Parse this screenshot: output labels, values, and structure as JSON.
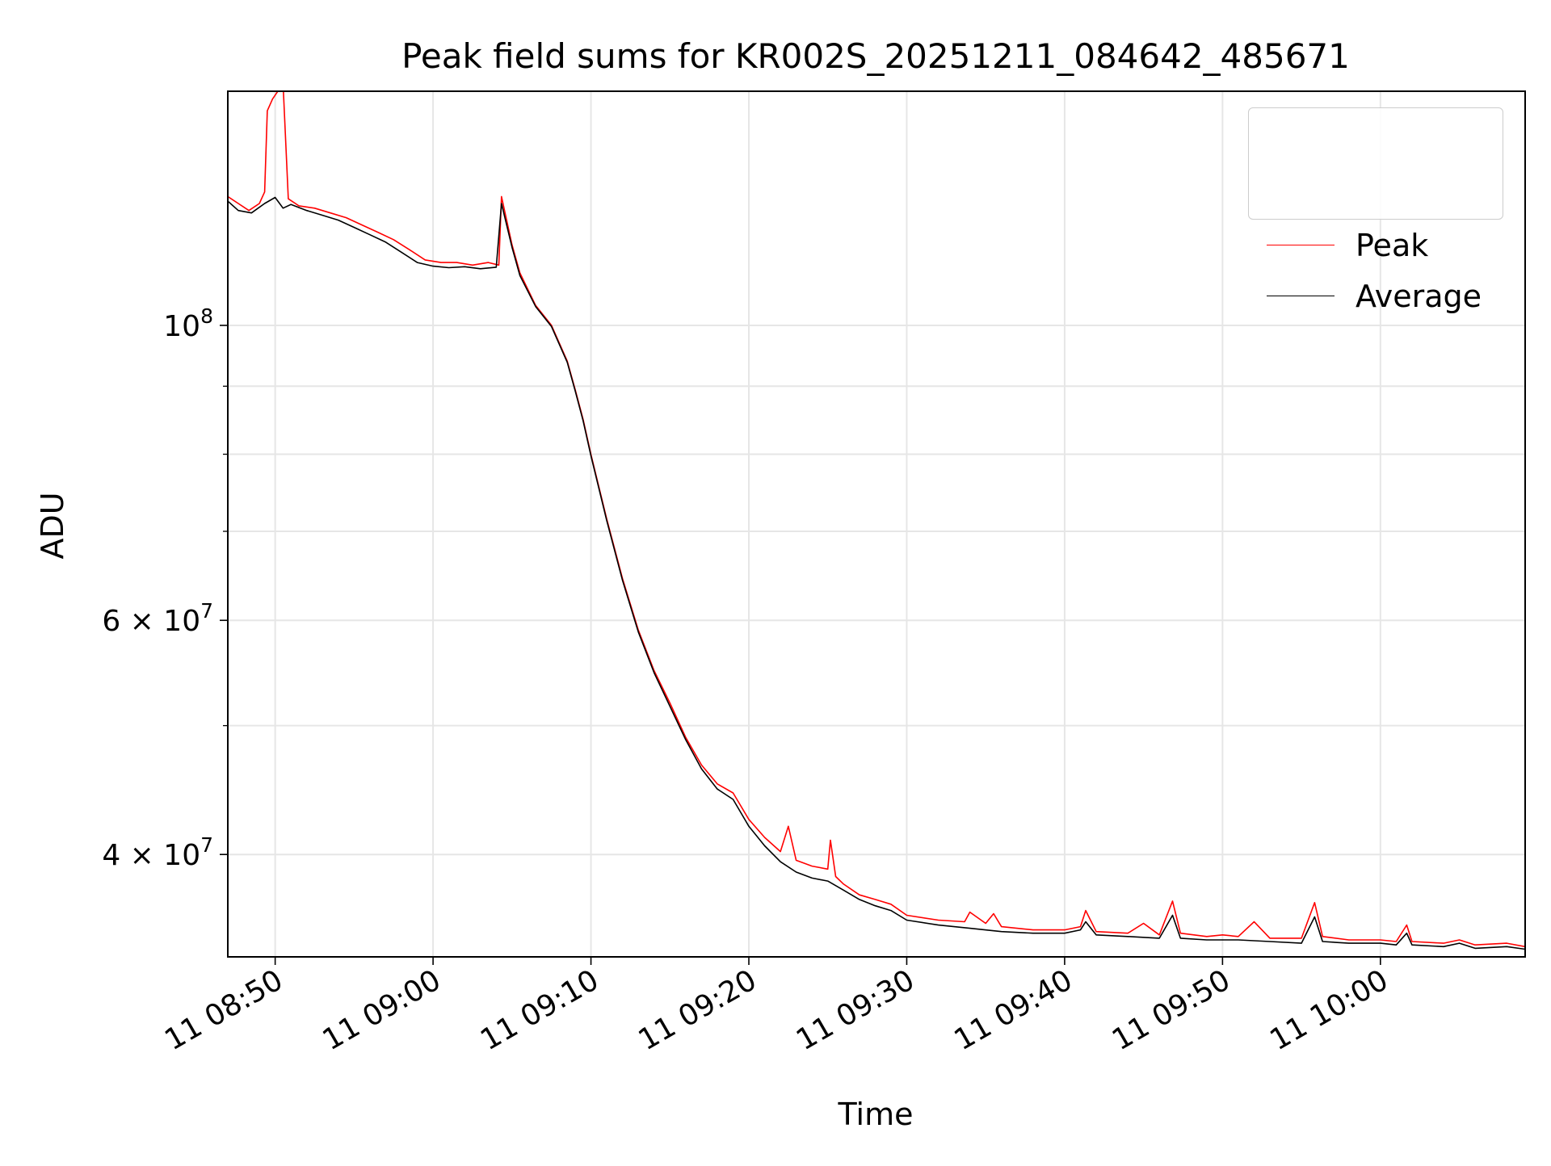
{
  "chart_data": {
    "type": "line",
    "title": "Peak field sums for KR002S_20251211_084642_485671",
    "xlabel": "Time",
    "ylabel": "ADU",
    "yscale": "log",
    "grid": true,
    "legend_position": "top-right",
    "x_tick_labels": [
      "11 08:50",
      "11 09:00",
      "11 09:10",
      "11 09:20",
      "11 09:30",
      "11 09:40",
      "11 09:50",
      "11 10:00"
    ],
    "x_tick_times": [
      "08:50",
      "09:00",
      "09:10",
      "09:20",
      "09:30",
      "09:40",
      "09:50",
      "10:00"
    ],
    "y_tick_labels": [
      {
        "value": 100000000,
        "mantissa": "",
        "exponent": "8"
      },
      {
        "value": 60000000,
        "mantissa": "6",
        "exponent": "7"
      },
      {
        "value": 40000000,
        "mantissa": "4",
        "exponent": "7"
      }
    ],
    "y_minor_ticks": [
      30000000,
      50000000,
      70000000,
      80000000,
      90000000
    ],
    "xlim": [
      "08:47:00",
      "10:09:10"
    ],
    "ylim": [
      33500000,
      150000000
    ],
    "series": [
      {
        "name": "Peak",
        "color": "#ff0000",
        "points": [
          [
            "08:47:00",
            125000000
          ],
          [
            "08:47:40",
            123500000
          ],
          [
            "08:48:20",
            122000000
          ],
          [
            "08:49:00",
            123500000
          ],
          [
            "08:49:20",
            126000000
          ],
          [
            "08:49:30",
            145000000
          ],
          [
            "08:49:50",
            148000000
          ],
          [
            "08:50:30",
            152000000
          ],
          [
            "08:50:50",
            124500000
          ],
          [
            "08:51:30",
            123000000
          ],
          [
            "08:52:30",
            122500000
          ],
          [
            "08:53:30",
            121500000
          ],
          [
            "08:54:30",
            120500000
          ],
          [
            "08:55:30",
            119000000
          ],
          [
            "08:56:30",
            117500000
          ],
          [
            "08:57:30",
            116000000
          ],
          [
            "08:58:30",
            114000000
          ],
          [
            "08:59:30",
            112000000
          ],
          [
            "09:00:30",
            111500000
          ],
          [
            "09:01:30",
            111500000
          ],
          [
            "09:02:30",
            111000000
          ],
          [
            "09:03:30",
            111500000
          ],
          [
            "09:04:10",
            111000000
          ],
          [
            "09:04:20",
            125000000
          ],
          [
            "09:05:00",
            115000000
          ],
          [
            "09:05:30",
            109500000
          ],
          [
            "09:06:30",
            103500000
          ],
          [
            "09:07:30",
            100000000
          ],
          [
            "09:08:30",
            94000000
          ],
          [
            "09:09:00",
            89500000
          ],
          [
            "09:09:30",
            85000000
          ],
          [
            "09:10:00",
            80000000
          ],
          [
            "09:11:00",
            71500000
          ],
          [
            "09:12:00",
            64500000
          ],
          [
            "09:13:00",
            59000000
          ],
          [
            "09:14:00",
            55000000
          ],
          [
            "09:15:00",
            52000000
          ],
          [
            "09:16:00",
            49000000
          ],
          [
            "09:17:00",
            46700000
          ],
          [
            "09:18:00",
            45200000
          ],
          [
            "09:19:00",
            44500000
          ],
          [
            "09:20:00",
            42500000
          ],
          [
            "09:21:00",
            41200000
          ],
          [
            "09:22:00",
            40200000
          ],
          [
            "09:22:30",
            42000000
          ],
          [
            "09:23:00",
            39600000
          ],
          [
            "09:24:00",
            39200000
          ],
          [
            "09:25:00",
            39000000
          ],
          [
            "09:25:10",
            41000000
          ],
          [
            "09:25:30",
            38500000
          ],
          [
            "09:26:00",
            38000000
          ],
          [
            "09:27:00",
            37300000
          ],
          [
            "09:28:00",
            37000000
          ],
          [
            "09:29:00",
            36700000
          ],
          [
            "09:30:00",
            36000000
          ],
          [
            "09:32:00",
            35700000
          ],
          [
            "09:33:40",
            35600000
          ],
          [
            "09:34:00",
            36200000
          ],
          [
            "09:35:00",
            35500000
          ],
          [
            "09:35:30",
            36100000
          ],
          [
            "09:36:00",
            35300000
          ],
          [
            "09:38:00",
            35100000
          ],
          [
            "09:40:00",
            35100000
          ],
          [
            "09:41:00",
            35300000
          ],
          [
            "09:41:20",
            36300000
          ],
          [
            "09:42:00",
            35000000
          ],
          [
            "09:44:00",
            34900000
          ],
          [
            "09:45:00",
            35500000
          ],
          [
            "09:46:00",
            34800000
          ],
          [
            "09:46:50",
            36900000
          ],
          [
            "09:47:20",
            34900000
          ],
          [
            "09:49:00",
            34700000
          ],
          [
            "09:50:00",
            34800000
          ],
          [
            "09:51:00",
            34700000
          ],
          [
            "09:52:00",
            35600000
          ],
          [
            "09:53:00",
            34600000
          ],
          [
            "09:55:00",
            34600000
          ],
          [
            "09:55:50",
            36800000
          ],
          [
            "09:56:20",
            34700000
          ],
          [
            "09:58:00",
            34500000
          ],
          [
            "10:00:00",
            34500000
          ],
          [
            "10:01:00",
            34400000
          ],
          [
            "10:01:40",
            35400000
          ],
          [
            "10:02:00",
            34400000
          ],
          [
            "10:04:00",
            34300000
          ],
          [
            "10:05:00",
            34500000
          ],
          [
            "10:06:00",
            34200000
          ],
          [
            "10:08:00",
            34300000
          ],
          [
            "10:09:10",
            34100000
          ]
        ]
      },
      {
        "name": "Average",
        "color": "#000000",
        "points": [
          [
            "08:47:00",
            124000000
          ],
          [
            "08:47:40",
            122000000
          ],
          [
            "08:48:30",
            121500000
          ],
          [
            "08:49:20",
            123500000
          ],
          [
            "08:50:00",
            124800000
          ],
          [
            "08:50:30",
            122500000
          ],
          [
            "08:51:00",
            123300000
          ],
          [
            "08:52:00",
            122000000
          ],
          [
            "08:53:00",
            121000000
          ],
          [
            "08:54:00",
            120000000
          ],
          [
            "08:55:00",
            118500000
          ],
          [
            "08:56:00",
            117000000
          ],
          [
            "08:57:00",
            115500000
          ],
          [
            "08:58:00",
            113500000
          ],
          [
            "08:59:00",
            111500000
          ],
          [
            "09:00:00",
            110800000
          ],
          [
            "09:01:00",
            110500000
          ],
          [
            "09:02:00",
            110700000
          ],
          [
            "09:03:00",
            110300000
          ],
          [
            "09:04:00",
            110600000
          ],
          [
            "09:04:20",
            123500000
          ],
          [
            "09:05:00",
            114500000
          ],
          [
            "09:05:30",
            109000000
          ],
          [
            "09:06:30",
            103300000
          ],
          [
            "09:07:30",
            99800000
          ],
          [
            "09:08:30",
            93800000
          ],
          [
            "09:09:00",
            89300000
          ],
          [
            "09:09:30",
            84800000
          ],
          [
            "09:10:00",
            79800000
          ],
          [
            "09:11:00",
            71300000
          ],
          [
            "09:12:00",
            64300000
          ],
          [
            "09:13:00",
            58800000
          ],
          [
            "09:14:00",
            54800000
          ],
          [
            "09:15:00",
            51700000
          ],
          [
            "09:16:00",
            48800000
          ],
          [
            "09:17:00",
            46400000
          ],
          [
            "09:18:00",
            44800000
          ],
          [
            "09:19:00",
            44000000
          ],
          [
            "09:20:00",
            42000000
          ],
          [
            "09:21:00",
            40600000
          ],
          [
            "09:22:00",
            39500000
          ],
          [
            "09:23:00",
            38800000
          ],
          [
            "09:24:00",
            38400000
          ],
          [
            "09:25:00",
            38200000
          ],
          [
            "09:26:00",
            37600000
          ],
          [
            "09:27:00",
            37000000
          ],
          [
            "09:28:00",
            36600000
          ],
          [
            "09:29:00",
            36300000
          ],
          [
            "09:30:00",
            35700000
          ],
          [
            "09:32:00",
            35400000
          ],
          [
            "09:34:00",
            35200000
          ],
          [
            "09:36:00",
            35000000
          ],
          [
            "09:38:00",
            34900000
          ],
          [
            "09:40:00",
            34900000
          ],
          [
            "09:41:00",
            35100000
          ],
          [
            "09:41:20",
            35600000
          ],
          [
            "09:42:00",
            34800000
          ],
          [
            "09:44:00",
            34700000
          ],
          [
            "09:46:00",
            34600000
          ],
          [
            "09:46:50",
            36000000
          ],
          [
            "09:47:20",
            34600000
          ],
          [
            "09:49:00",
            34500000
          ],
          [
            "09:51:00",
            34500000
          ],
          [
            "09:53:00",
            34400000
          ],
          [
            "09:55:00",
            34300000
          ],
          [
            "09:55:50",
            35900000
          ],
          [
            "09:56:20",
            34400000
          ],
          [
            "09:58:00",
            34300000
          ],
          [
            "10:00:00",
            34300000
          ],
          [
            "10:01:00",
            34200000
          ],
          [
            "10:01:40",
            34900000
          ],
          [
            "10:02:00",
            34200000
          ],
          [
            "10:04:00",
            34100000
          ],
          [
            "10:05:00",
            34300000
          ],
          [
            "10:06:00",
            34000000
          ],
          [
            "10:08:00",
            34100000
          ],
          [
            "10:09:10",
            33950000
          ]
        ]
      }
    ]
  }
}
